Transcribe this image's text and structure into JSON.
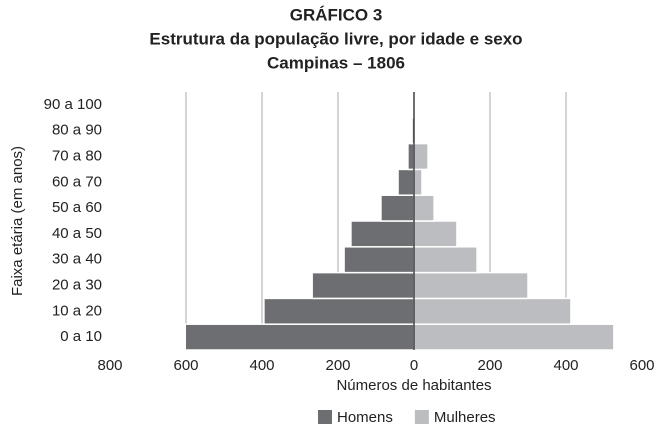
{
  "chart_data": {
    "type": "pyramid",
    "title": [
      "GRÁFICO 3",
      "Estrutura da população livre, por idade e sexo",
      "Campinas – 1806"
    ],
    "x_label": "Números de habitantes",
    "y_label": "Faixa etária (em anos)",
    "categories": [
      "0 a 10",
      "10 a 20",
      "20 a 30",
      "30 a 40",
      "40 a 50",
      "50 a 60",
      "60 a 70",
      "70 a 80",
      "80 a 90",
      "90 a 100"
    ],
    "series": [
      {
        "name": "Homens",
        "color": "#6d6e71",
        "side": "left",
        "values": [
          602,
          395,
          268,
          184,
          166,
          87,
          42,
          16,
          5,
          1
        ]
      },
      {
        "name": "Mulheres",
        "color": "#bcbdc0",
        "side": "right",
        "values": [
          526,
          413,
          300,
          166,
          113,
          53,
          21,
          37,
          0,
          0
        ]
      }
    ],
    "xlim": [
      -800,
      600
    ],
    "xticks": [
      {
        "value": -800,
        "label": "800"
      },
      {
        "value": -600,
        "label": "600"
      },
      {
        "value": -400,
        "label": "400"
      },
      {
        "value": -200,
        "label": "200"
      },
      0,
      200,
      400,
      600
    ],
    "grid": true,
    "legend": "bottom"
  }
}
